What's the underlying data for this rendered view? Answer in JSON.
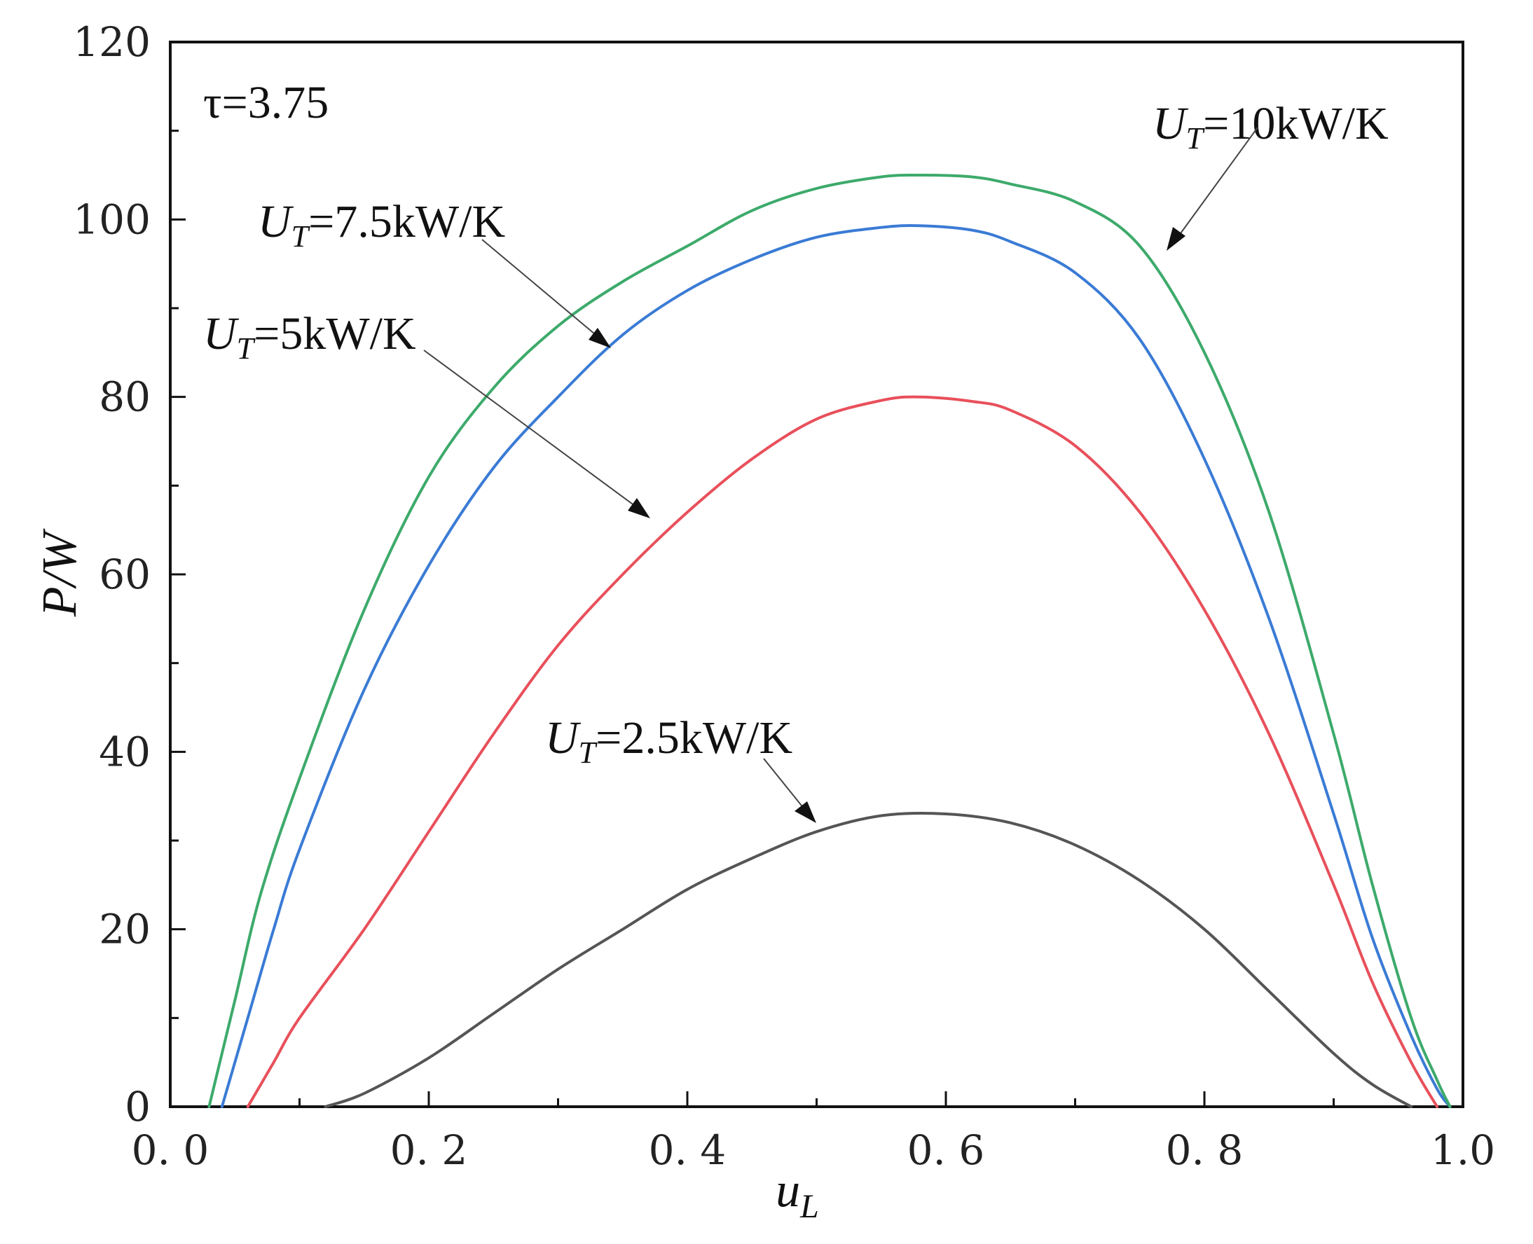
{
  "chart_data": {
    "type": "line",
    "title": "",
    "xlabel": {
      "main": "u",
      "sub": "L"
    },
    "ylabel": "P/W",
    "xlim": [
      0,
      1
    ],
    "ylim": [
      0,
      120
    ],
    "xticks": [
      "0. 0",
      "0. 2",
      "0. 4",
      "0. 6",
      "0. 8",
      "1.0"
    ],
    "yticks": [
      "0",
      "20",
      "40",
      "60",
      "80",
      "100",
      "120"
    ],
    "parameter_label": "τ=3.75",
    "series": [
      {
        "name": "U_T=2.5kW/K",
        "label_main": "U",
        "label_sub": "T",
        "label_rest": "=2.5kW/K",
        "color": "#555555",
        "x": [
          0.12,
          0.15,
          0.2,
          0.25,
          0.3,
          0.35,
          0.4,
          0.45,
          0.5,
          0.55,
          0.6,
          0.65,
          0.7,
          0.75,
          0.8,
          0.85,
          0.9,
          0.93,
          0.96
        ],
        "y": [
          0,
          1.5,
          5.5,
          10.5,
          15.5,
          20,
          24.5,
          28,
          31,
          32.8,
          33.0,
          32.0,
          29.5,
          25.5,
          20,
          13,
          6,
          2.5,
          0
        ]
      },
      {
        "name": "U_T=5kW/K",
        "label_main": "U",
        "label_sub": "T",
        "label_rest": "=5kW/K",
        "color": "#e8505b",
        "x": [
          0.06,
          0.08,
          0.1,
          0.15,
          0.2,
          0.25,
          0.3,
          0.35,
          0.4,
          0.45,
          0.5,
          0.55,
          0.58,
          0.62,
          0.65,
          0.7,
          0.75,
          0.8,
          0.85,
          0.9,
          0.93,
          0.96,
          0.98
        ],
        "y": [
          0,
          5,
          10,
          20,
          31,
          42,
          52,
          60,
          67,
          73,
          77.5,
          79.6,
          80,
          79.5,
          78.5,
          74.5,
          67,
          56,
          42,
          25,
          14,
          5,
          0
        ]
      },
      {
        "name": "U_T=7.5kW/K",
        "label_main": "U",
        "label_sub": "T",
        "label_rest": "=7.5kW/K",
        "color": "#3a7bd5",
        "x": [
          0.04,
          0.06,
          0.08,
          0.1,
          0.15,
          0.2,
          0.25,
          0.3,
          0.35,
          0.4,
          0.45,
          0.5,
          0.55,
          0.58,
          0.62,
          0.65,
          0.7,
          0.75,
          0.8,
          0.85,
          0.9,
          0.93,
          0.96,
          0.98,
          0.99
        ],
        "y": [
          0,
          10,
          20,
          29,
          47,
          61,
          72,
          80,
          87,
          92,
          95.5,
          98,
          99.1,
          99.3,
          98.8,
          97.5,
          94,
          86.5,
          73,
          55,
          33,
          19,
          8,
          2,
          0
        ]
      },
      {
        "name": "U_T=10kW/K",
        "label_main": "U",
        "label_sub": "T",
        "label_rest": "=10kW/K",
        "color": "#3daa6b",
        "x": [
          0.03,
          0.05,
          0.07,
          0.1,
          0.15,
          0.2,
          0.25,
          0.3,
          0.35,
          0.4,
          0.45,
          0.5,
          0.55,
          0.58,
          0.62,
          0.65,
          0.7,
          0.75,
          0.8,
          0.85,
          0.9,
          0.93,
          0.96,
          0.98,
          0.99
        ],
        "y": [
          0,
          12,
          24,
          37,
          56,
          71,
          81,
          88,
          93,
          97,
          101,
          103.5,
          104.8,
          105.0,
          104.8,
          104,
          102,
          97,
          85,
          67,
          42,
          25,
          10,
          3,
          0
        ]
      }
    ]
  }
}
